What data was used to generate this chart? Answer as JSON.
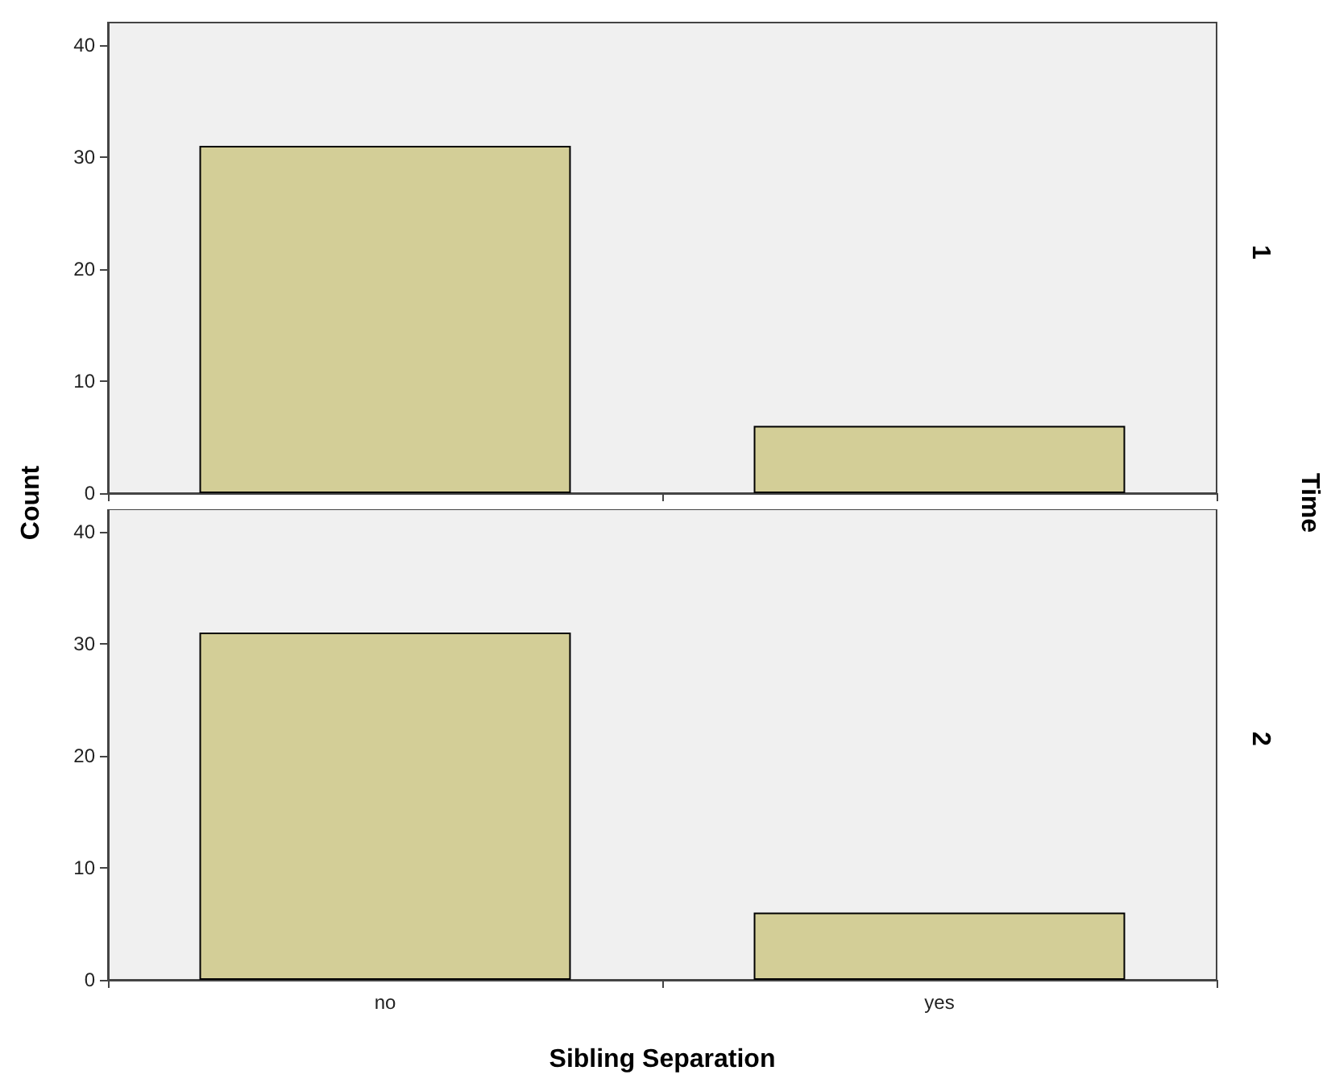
{
  "chart_data": [
    {
      "type": "bar",
      "categories": [
        null,
        null
      ],
      "values": [
        31,
        6
      ],
      "color": "#d3ce97",
      "ylim": [
        0,
        42
      ],
      "yticks": [
        0,
        10,
        20,
        30,
        40
      ],
      "grid": false,
      "ylabel": "Count",
      "y2label": "1",
      "annotations": [
        "Time"
      ]
    },
    {
      "type": "bar",
      "categories": [
        "no",
        "yes"
      ],
      "values": [
        31,
        6
      ],
      "color": "#d3ce97",
      "ylim": [
        0,
        42
      ],
      "yticks": [
        0,
        10,
        20,
        30,
        40
      ],
      "grid": false,
      "xlabel": "Sibling Separation",
      "y2label": "2"
    }
  ]
}
